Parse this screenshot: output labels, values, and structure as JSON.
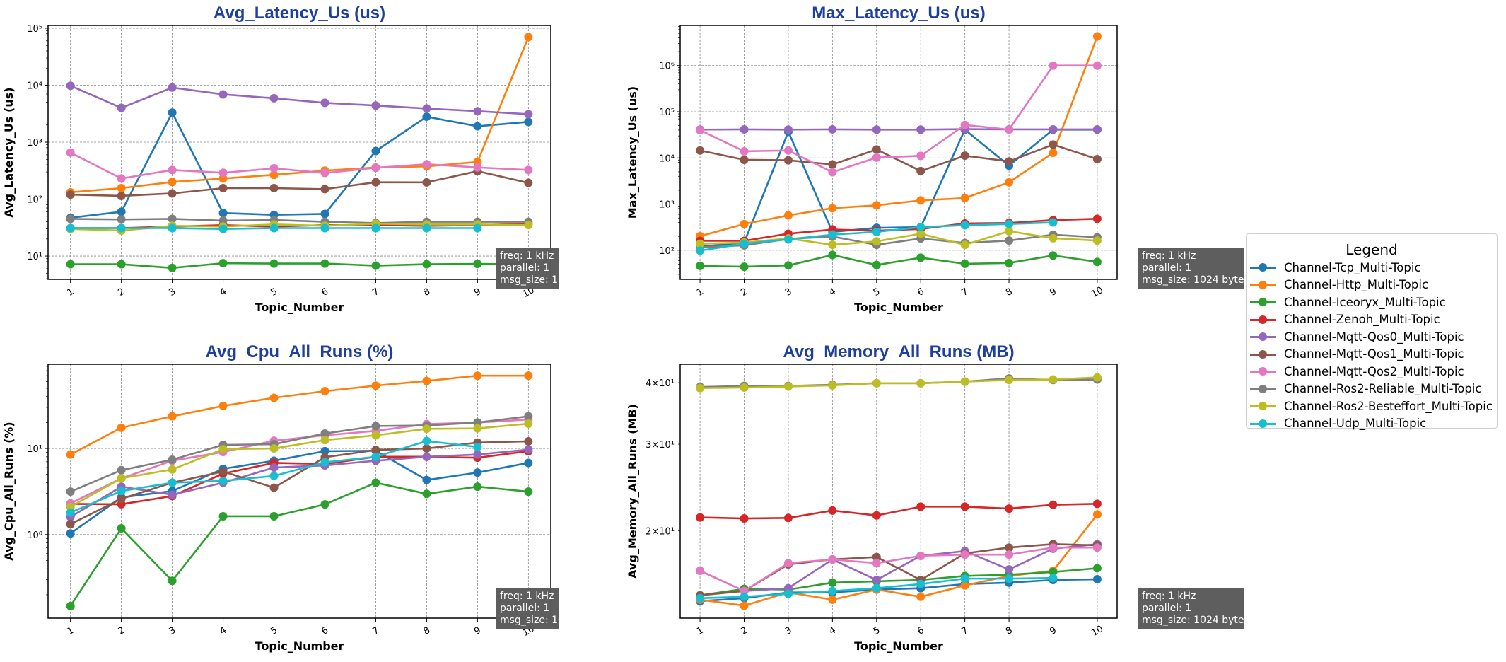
{
  "series": [
    {
      "name": "Channel-Tcp_Multi-Topic",
      "color": "#1f77b4"
    },
    {
      "name": "Channel-Http_Multi-Topic",
      "color": "#ff7f0e"
    },
    {
      "name": "Channel-Iceoryx_Multi-Topic",
      "color": "#2ca02c"
    },
    {
      "name": "Channel-Zenoh_Multi-Topic",
      "color": "#d62728"
    },
    {
      "name": "Channel-Mqtt-Qos0_Multi-Topic",
      "color": "#9467bd"
    },
    {
      "name": "Channel-Mqtt-Qos1_Multi-Topic",
      "color": "#8c564b"
    },
    {
      "name": "Channel-Mqtt-Qos2_Multi-Topic",
      "color": "#e377c2"
    },
    {
      "name": "Channel-Ros2-Reliable_Multi-Topic",
      "color": "#7f7f7f"
    },
    {
      "name": "Channel-Ros2-Besteffort_Multi-Topic",
      "color": "#bcbd22"
    },
    {
      "name": "Channel-Udp_Multi-Topic",
      "color": "#17becf"
    }
  ],
  "legend": {
    "title": "Legend",
    "placement": "right"
  },
  "annotation": [
    "freq: 1 kHz",
    "parallel: 1",
    "msg_size: 1024 bytes"
  ],
  "chart_data": [
    {
      "type": "line",
      "title": "Avg_Latency_Us  (us)",
      "xlabel": "Topic_Number",
      "ylabel": "Avg_Latency_Us (us)",
      "yscale": "log",
      "ylim": [
        3.9,
        112000
      ],
      "xlim": [
        0.56,
        10.44
      ],
      "grid": true,
      "x": [
        1,
        2,
        3,
        4,
        5,
        6,
        7,
        8,
        9,
        10
      ],
      "x_tick_labels": [
        "1",
        "2",
        "3",
        "4",
        "5",
        "6",
        "7",
        "8",
        "9",
        "10"
      ],
      "y_tick_labels": [
        {
          "value": 10,
          "label": "10¹"
        },
        {
          "value": 100,
          "label": "10²"
        },
        {
          "value": 1000,
          "label": "10³"
        },
        {
          "value": 10000,
          "label": "10⁴"
        },
        {
          "value": 100000,
          "label": "10⁵"
        }
      ],
      "values": [
        [
          47,
          60,
          3300,
          57,
          53,
          55,
          700,
          2800,
          1900,
          2270
        ],
        [
          132,
          156,
          200,
          230,
          267,
          317,
          359,
          376,
          450,
          70000
        ],
        [
          7.2,
          7.2,
          6.2,
          7.5,
          7.4,
          7.4,
          6.8,
          7.2,
          7.3,
          7.2
        ],
        [
          31,
          31,
          33,
          35,
          33,
          35,
          35,
          34,
          35,
          37
        ],
        [
          9800,
          4000,
          9100,
          6900,
          5900,
          4900,
          4400,
          3900,
          3500,
          3100
        ],
        [
          120,
          114,
          126,
          156,
          156,
          150,
          198,
          197,
          310,
          193
        ],
        [
          655,
          230,
          325,
          290,
          347,
          288,
          355,
          410,
          360,
          325
        ],
        [
          45,
          44,
          45,
          42,
          43,
          40,
          38,
          40,
          40,
          40
        ],
        [
          30,
          28,
          34,
          33,
          36,
          34,
          37,
          36,
          36,
          35
        ],
        [
          31,
          31,
          31,
          30,
          31,
          31,
          31,
          31,
          31,
          null
        ]
      ]
    },
    {
      "type": "line",
      "title": "Max_Latency_Us  (us)",
      "xlabel": "Topic_Number",
      "ylabel": "Max_Latency_Us (us)",
      "yscale": "log",
      "ylim": [
        23.4,
        7400000
      ],
      "xlim": [
        0.55,
        10.45
      ],
      "grid": true,
      "x": [
        1,
        2,
        3,
        4,
        5,
        6,
        7,
        8,
        9,
        10
      ],
      "x_tick_labels": [
        "1",
        "2",
        "3",
        "4",
        "5",
        "6",
        "7",
        "8",
        "9",
        "10"
      ],
      "y_tick_labels": [
        {
          "value": 100,
          "label": "10²"
        },
        {
          "value": 1000,
          "label": "10³"
        },
        {
          "value": 10000,
          "label": "10⁴"
        },
        {
          "value": 100000,
          "label": "10⁵"
        },
        {
          "value": 1000000,
          "label": "10⁶"
        }
      ],
      "values": [
        [
          119,
          147,
          37000,
          250,
          306,
          317,
          41000,
          6800,
          41000,
          41000
        ],
        [
          202,
          370,
          570,
          815,
          940,
          1200,
          1350,
          2960,
          12900,
          4300000
        ],
        [
          46,
          44,
          47,
          79,
          48,
          69,
          51,
          53,
          77,
          56
        ],
        [
          160,
          160,
          228,
          281,
          265,
          290,
          380,
          390,
          450,
          480
        ],
        [
          41000,
          41500,
          41000,
          41500,
          41000,
          41000,
          42000,
          41500,
          41500,
          41500
        ],
        [
          14500,
          9100,
          8900,
          7200,
          15200,
          5200,
          11200,
          8400,
          19500,
          9400
        ],
        [
          40000,
          13900,
          14500,
          4900,
          10200,
          11100,
          51700,
          41000,
          1000000,
          1000000
        ],
        [
          116,
          128,
          176,
          198,
          131,
          180,
          144,
          162,
          217,
          191
        ],
        [
          138,
          147,
          180,
          131,
          156,
          228,
          131,
          259,
          182,
          162
        ],
        [
          98,
          139,
          172,
          218,
          250,
          317,
          348,
          370,
          400,
          null
        ]
      ]
    },
    {
      "type": "line",
      "title": "Avg_Cpu_All_Runs  (%)",
      "xlabel": "Topic_Number",
      "ylabel": "Avg_Cpu_All_Runs (%)",
      "yscale": "log",
      "ylim": [
        0.107,
        95
      ],
      "xlim": [
        0.56,
        10.44
      ],
      "grid": true,
      "x": [
        1,
        2,
        3,
        4,
        5,
        6,
        7,
        8,
        9,
        10
      ],
      "x_tick_labels": [
        "1",
        "2",
        "3",
        "4",
        "5",
        "6",
        "7",
        "8",
        "9",
        "10"
      ],
      "y_tick_labels": [
        {
          "value": 1,
          "label": "10⁰"
        },
        {
          "value": 10,
          "label": "10¹"
        }
      ],
      "values": [
        [
          1.03,
          2.7,
          3.2,
          5.8,
          7.2,
          9.3,
          9.4,
          4.3,
          5.25,
          6.8
        ],
        [
          8.5,
          17.4,
          23.6,
          31.2,
          38.7,
          46.3,
          53.6,
          60.8,
          69.9,
          70
        ],
        [
          0.148,
          1.18,
          0.29,
          1.63,
          1.63,
          2.24,
          4.0,
          2.97,
          3.6,
          3.15
        ],
        [
          2.27,
          2.25,
          2.8,
          5.1,
          6.8,
          6.6,
          8.0,
          8.0,
          7.8,
          9.3
        ],
        [
          1.6,
          3.6,
          2.9,
          4.0,
          6.0,
          6.35,
          7.2,
          8.0,
          8.5,
          9.7
        ],
        [
          1.32,
          2.6,
          4.0,
          5.4,
          3.5,
          7.9,
          9.6,
          10,
          11.7,
          12.1
        ],
        [
          2.3,
          4.5,
          7.2,
          9.1,
          12.3,
          14.2,
          16.0,
          19.2,
          20,
          21.7
        ],
        [
          3.15,
          5.6,
          7.4,
          11.0,
          11.2,
          14.9,
          18.2,
          18.5,
          20.0,
          23.6
        ],
        [
          2.1,
          4.5,
          5.7,
          9.8,
          10.0,
          12.5,
          14.2,
          16.9,
          17.1,
          19.4
        ],
        [
          1.8,
          3.2,
          4.0,
          4.2,
          4.8,
          6.9,
          8.0,
          12.2,
          10.4,
          null
        ]
      ]
    },
    {
      "type": "line",
      "title": "Avg_Memory_All_Runs  (MB)",
      "xlabel": "Topic_Number",
      "ylabel": "Avg_Memory_All_Runs (MB)",
      "yscale": "log",
      "ylim": [
        13.3,
        43.6
      ],
      "xlim": [
        0.55,
        10.45
      ],
      "grid": true,
      "x": [
        1,
        2,
        3,
        4,
        5,
        6,
        7,
        8,
        9,
        10
      ],
      "x_tick_labels": [
        "1",
        "2",
        "3",
        "4",
        "5",
        "6",
        "7",
        "8",
        "9",
        "10"
      ],
      "y_tick_labels": [
        {
          "value": 20,
          "label": "2×10¹"
        },
        {
          "value": 30,
          "label": "3×10¹"
        },
        {
          "value": 40,
          "label": "4×10¹"
        }
      ],
      "values": [
        [
          14.4,
          14.6,
          15.0,
          15.0,
          15.2,
          15.3,
          15.6,
          15.7,
          15.9,
          15.95
        ],
        [
          14.5,
          14.1,
          15.0,
          14.5,
          15.2,
          14.7,
          15.5,
          16.2,
          16.6,
          21.6
        ],
        [
          14.8,
          15.25,
          15.2,
          15.7,
          15.8,
          15.9,
          16.2,
          16.3,
          16.5,
          16.8
        ],
        [
          21.3,
          21.2,
          21.25,
          22.0,
          21.5,
          22.4,
          22.4,
          22.2,
          22.6,
          22.7
        ],
        [
          16.6,
          15.1,
          15.3,
          17.5,
          15.9,
          17.8,
          18.2,
          16.7,
          18.4,
          18.8
        ],
        [
          14.8,
          15.1,
          17.1,
          17.5,
          17.7,
          15.9,
          18.0,
          18.5,
          18.8,
          18.7
        ],
        [
          16.6,
          15.1,
          17.2,
          17.5,
          17.2,
          17.8,
          17.9,
          17.9,
          18.5,
          18.5
        ],
        [
          39.2,
          39.4,
          39.4,
          39.6,
          39.9,
          39.9,
          40.2,
          40.8,
          40.5,
          40.6
        ],
        [
          39.0,
          39.1,
          39.3,
          39.5,
          39.9,
          39.9,
          40.2,
          40.5,
          40.6,
          41.0
        ],
        [
          14.6,
          14.7,
          14.9,
          15.1,
          15.3,
          15.6,
          16.0,
          16.0,
          16.05,
          null
        ]
      ]
    }
  ]
}
